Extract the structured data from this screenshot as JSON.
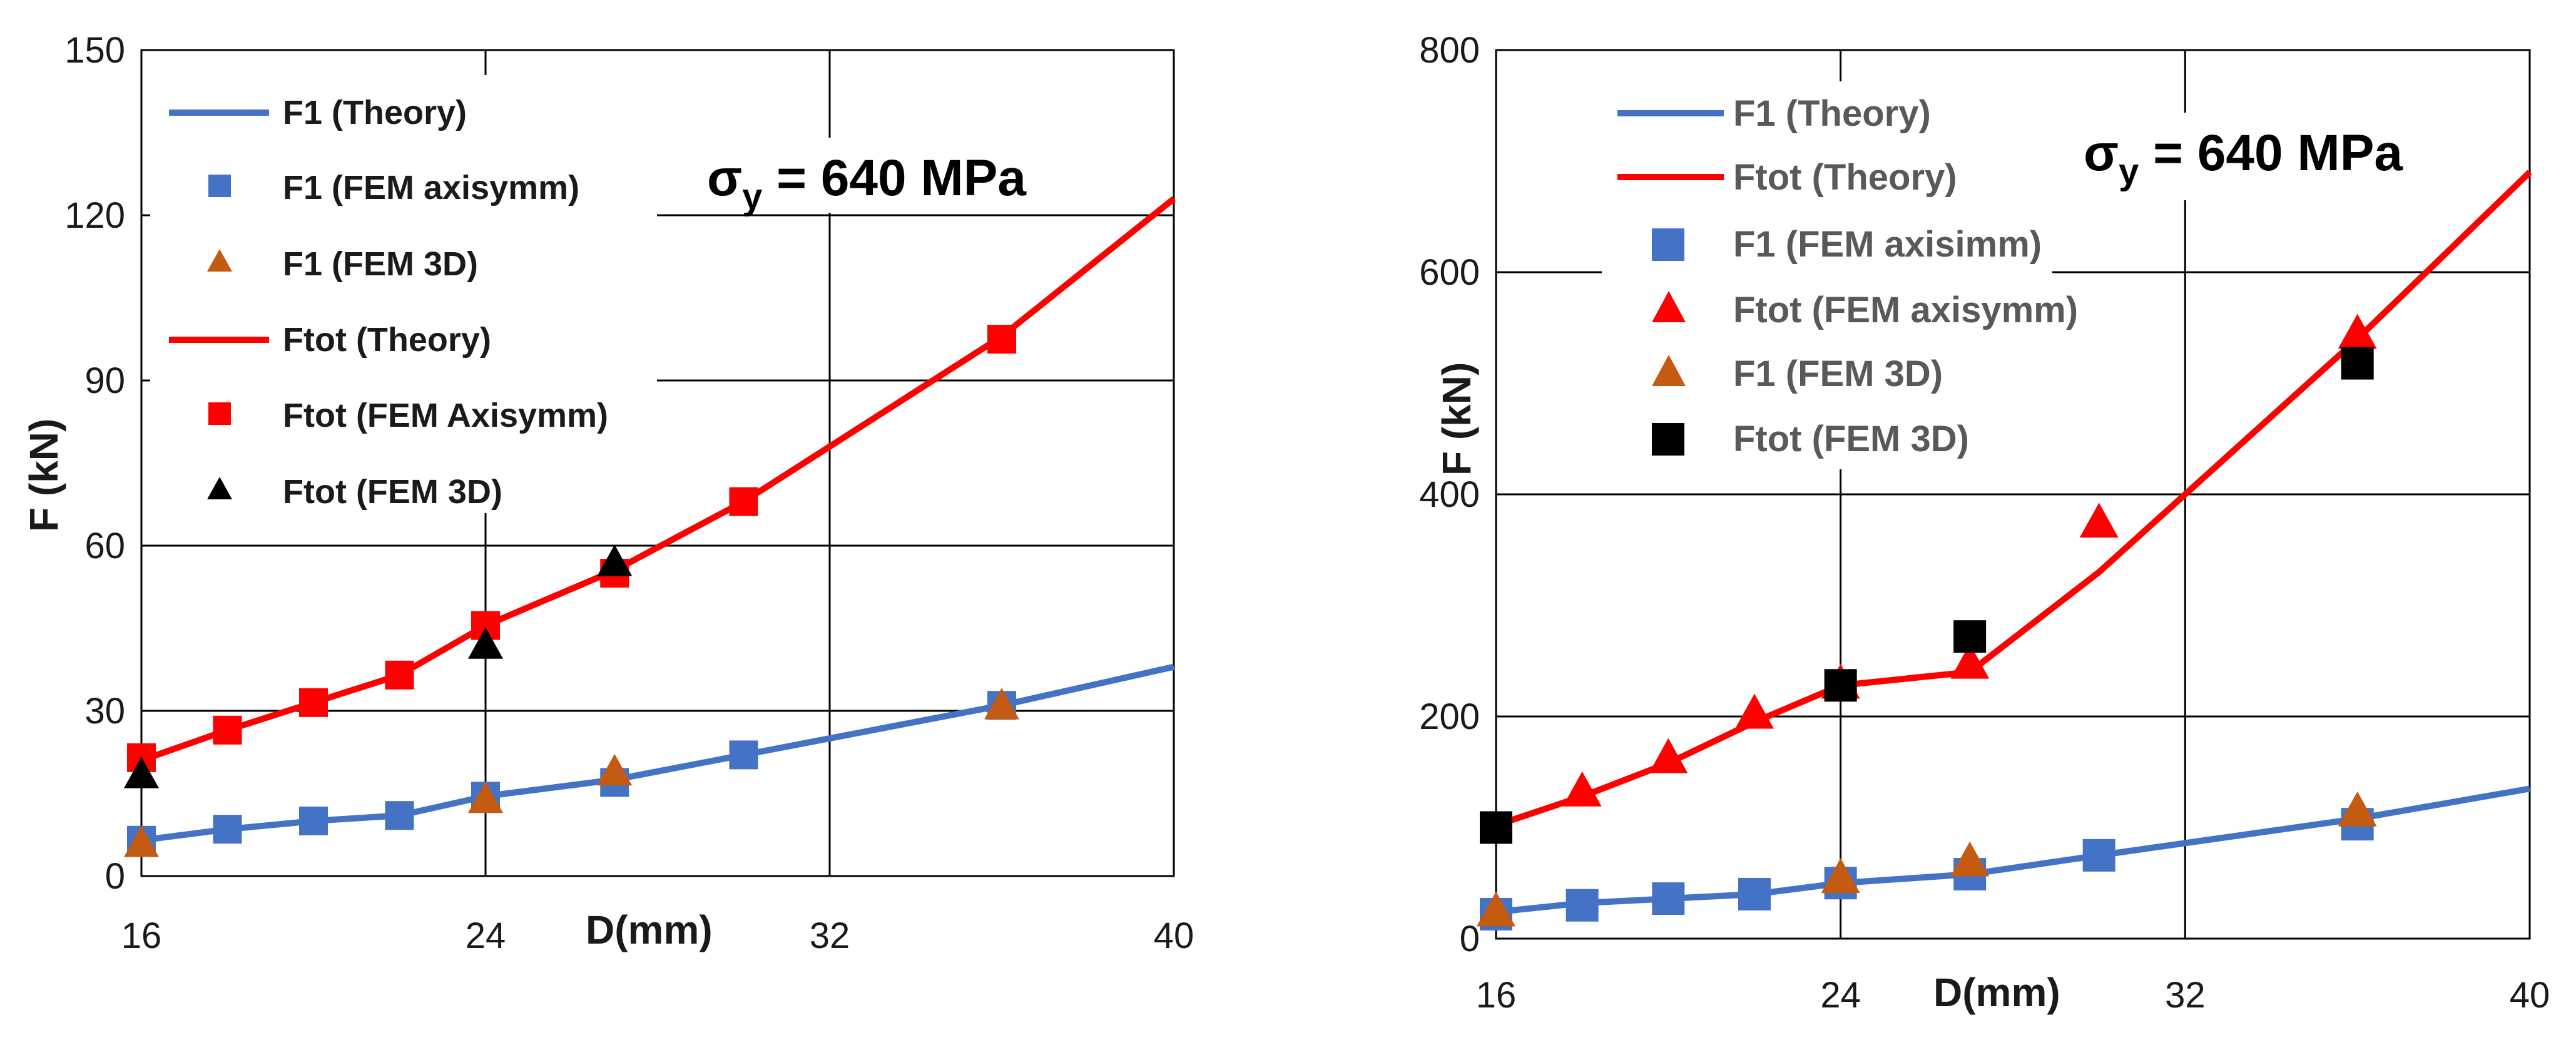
{
  "colors": {
    "blue": "#4472c4",
    "red": "#ff0000",
    "orange": "#c55a11",
    "black": "#000000",
    "grid": "#000000"
  },
  "chart_data": [
    {
      "type": "line+scatter",
      "xlabel": "D(mm)",
      "ylabel": "F (kN)",
      "xlim": [
        16,
        40
      ],
      "ylim": [
        0,
        150
      ],
      "xticks": [
        16,
        24,
        32,
        40
      ],
      "yticks": [
        0,
        30,
        60,
        90,
        120,
        150
      ],
      "annotation": {
        "main": "σ",
        "sub": "y",
        "rest": " = 640 MPa"
      },
      "legend": [
        {
          "label": "F1 (Theory)",
          "marker": "line",
          "color": "blue"
        },
        {
          "label": "F1 (FEM axisymm)",
          "marker": "square",
          "color": "blue"
        },
        {
          "label": "F1 (FEM 3D)",
          "marker": "triangle",
          "color": "orange"
        },
        {
          "label": "Ftot (Theory)",
          "marker": "line",
          "color": "red"
        },
        {
          "label": "Ftot (FEM Axisymm)",
          "marker": "square",
          "color": "red"
        },
        {
          "label": "Ftot (FEM 3D)",
          "marker": "triangle",
          "color": "black"
        }
      ],
      "series": [
        {
          "name": "F1 (Theory)",
          "kind": "line",
          "color": "blue",
          "x": [
            16,
            18,
            20,
            22,
            24,
            27,
            30,
            36,
            40
          ],
          "y": [
            6.5,
            8.5,
            10,
            11,
            14.5,
            17.5,
            22,
            31,
            38
          ]
        },
        {
          "name": "F1 (FEM axisymm)",
          "kind": "square",
          "color": "blue",
          "x": [
            16,
            18,
            20,
            22,
            24,
            27,
            30,
            36
          ],
          "y": [
            6.5,
            8.5,
            10,
            11,
            14.5,
            17,
            22,
            31
          ]
        },
        {
          "name": "F1 (FEM 3D)",
          "kind": "triangle",
          "color": "orange",
          "x": [
            16,
            24,
            27,
            36
          ],
          "y": [
            6,
            14,
            19,
            31
          ]
        },
        {
          "name": "Ftot (Theory)",
          "kind": "line",
          "color": "red",
          "x": [
            16,
            18,
            20,
            22,
            24,
            27,
            30,
            36,
            40
          ],
          "y": [
            21,
            26.5,
            31.5,
            36.5,
            45.5,
            55.5,
            68,
            98,
            123
          ]
        },
        {
          "name": "Ftot (FEM Axisymm)",
          "kind": "square",
          "color": "red",
          "x": [
            16,
            18,
            20,
            22,
            24,
            27,
            30,
            36
          ],
          "y": [
            21.5,
            26.5,
            31.5,
            36.5,
            45.5,
            55,
            68,
            97.5
          ]
        },
        {
          "name": "Ftot (FEM 3D)",
          "kind": "triangle",
          "color": "black",
          "x": [
            16,
            24,
            27
          ],
          "y": [
            18.5,
            42,
            57
          ]
        }
      ]
    },
    {
      "type": "line+scatter",
      "xlabel": "D(mm)",
      "ylabel": "F (kN)",
      "xlim": [
        16,
        40
      ],
      "ylim": [
        0,
        800
      ],
      "xticks": [
        16,
        24,
        32,
        40
      ],
      "yticks": [
        0,
        200,
        400,
        600,
        800
      ],
      "annotation": {
        "main": "σ",
        "sub": "y",
        "rest": " = 640 MPa"
      },
      "legend": [
        {
          "label": "F1 (Theory)",
          "marker": "line",
          "color": "blue"
        },
        {
          "label": "Ftot (Theory)",
          "marker": "line",
          "color": "red"
        },
        {
          "label": "F1 (FEM axisimm)",
          "marker": "square",
          "color": "blue"
        },
        {
          "label": "Ftot (FEM axisymm)",
          "marker": "triangle",
          "color": "red"
        },
        {
          "label": "F1 (FEM 3D)",
          "marker": "triangle",
          "color": "orange"
        },
        {
          "label": "Ftot (FEM 3D)",
          "marker": "square",
          "color": "black"
        }
      ],
      "series": [
        {
          "name": "F1 (Theory)",
          "kind": "line",
          "color": "blue",
          "x": [
            16,
            18,
            20,
            22,
            24,
            27,
            30,
            36,
            40
          ],
          "y": [
            24,
            32,
            36,
            40,
            50,
            58,
            75,
            108,
            135
          ]
        },
        {
          "name": "Ftot (Theory)",
          "kind": "line",
          "color": "red",
          "x": [
            16,
            18,
            20,
            22,
            24,
            27,
            30,
            32,
            36,
            40
          ],
          "y": [
            102,
            128,
            158,
            195,
            228,
            240,
            330,
            400,
            540,
            690
          ]
        },
        {
          "name": "F1 (FEM axisimm)",
          "kind": "square",
          "color": "blue",
          "x": [
            16,
            18,
            20,
            22,
            24,
            27,
            30,
            36
          ],
          "y": [
            22,
            30,
            36,
            40,
            50,
            58,
            75,
            103
          ]
        },
        {
          "name": "Ftot (FEM axisymm)",
          "kind": "triangle",
          "color": "red",
          "x": [
            18,
            20,
            22,
            24,
            27,
            30,
            36
          ],
          "y": [
            133,
            163,
            203,
            230,
            248,
            375,
            545
          ]
        },
        {
          "name": "F1 (FEM 3D)",
          "kind": "triangle",
          "color": "orange",
          "x": [
            16,
            24,
            27,
            36
          ],
          "y": [
            25,
            55,
            70,
            115
          ]
        },
        {
          "name": "Ftot (FEM 3D)",
          "kind": "square",
          "color": "black",
          "x": [
            16,
            24,
            27,
            36
          ],
          "y": [
            100,
            228,
            272,
            518
          ]
        }
      ]
    }
  ]
}
